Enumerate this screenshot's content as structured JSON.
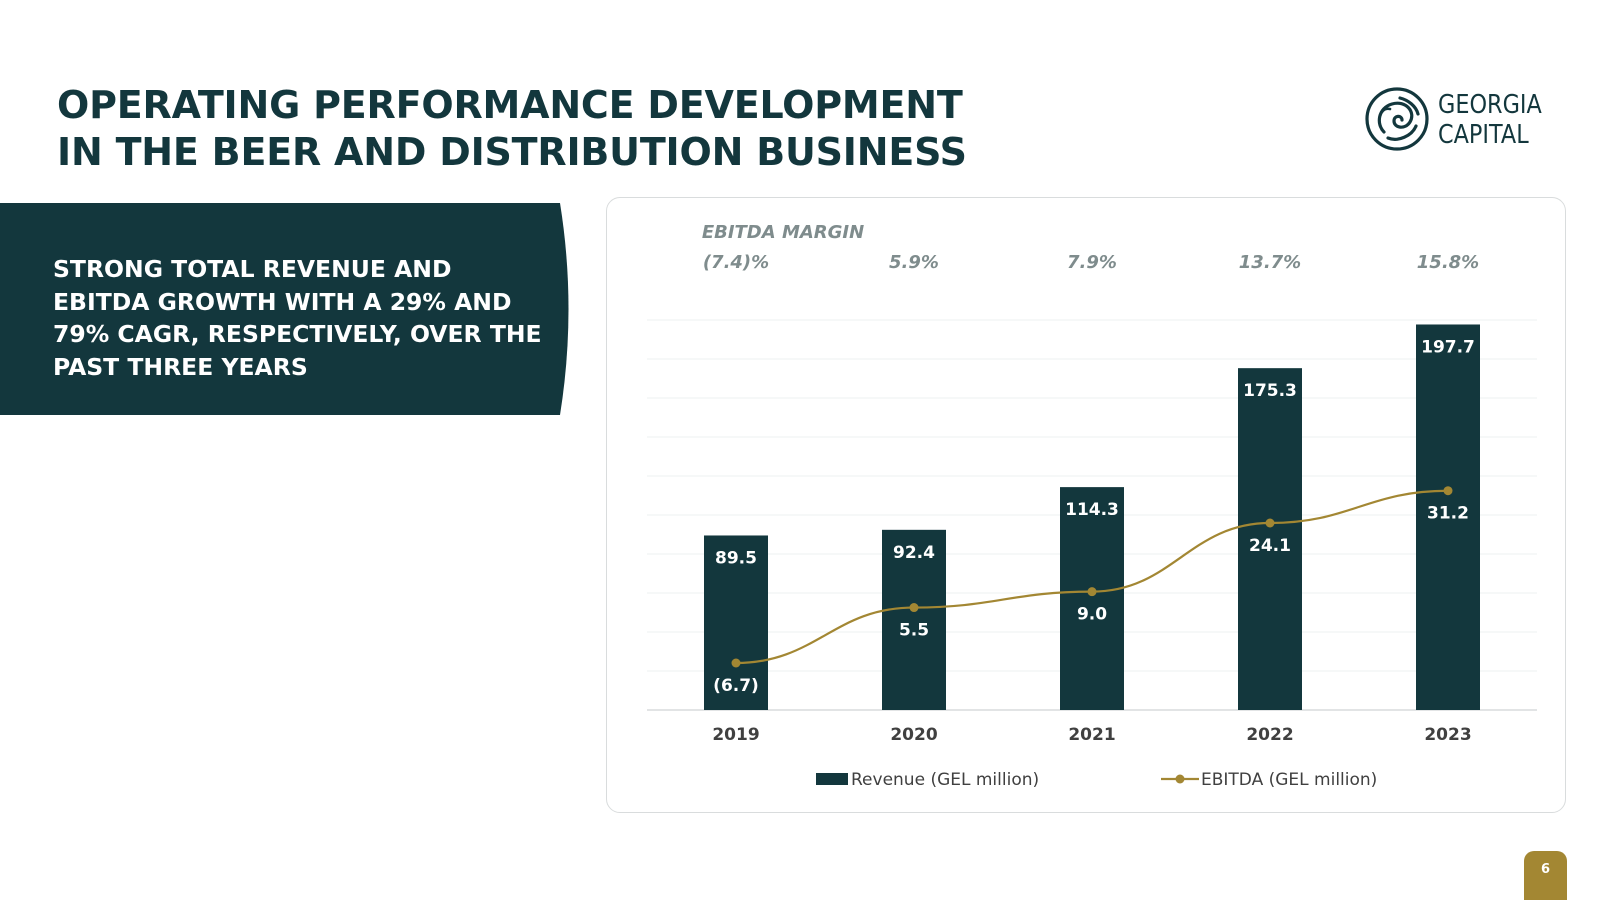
{
  "slide": {
    "title_lines": [
      "OPERATING PERFORMANCE DEVELOPMENT",
      "IN THE BEER AND DISTRIBUTION BUSINESS"
    ],
    "logo": {
      "lines": [
        "GEORGIA",
        "CAPITAL"
      ]
    },
    "banner_lines": [
      "STRONG TOTAL REVENUE AND",
      "EBITDA GROWTH WITH A 29% AND",
      "79% CAGR, RESPECTIVELY, OVER THE",
      "PAST THREE YEARS"
    ],
    "page_number": "6"
  },
  "colors": {
    "dark_teal": "#13373d",
    "gold": "#a38733",
    "grey_text": "#7f8c8d",
    "axis_text": "#404040"
  },
  "chart_data": {
    "type": "bar",
    "categories": [
      "2019",
      "2020",
      "2021",
      "2022",
      "2023"
    ],
    "ylim": [
      -10,
      200
    ],
    "grid": true,
    "legend_position": "bottom",
    "margin_header": "EBITDA MARGIN",
    "margins": [
      "(7.4)%",
      "5.9%",
      "7.9%",
      "13.7%",
      "15.8%"
    ],
    "series": [
      {
        "name": "Revenue (GEL million)",
        "type": "bar",
        "color": "#13373d",
        "values": [
          89.5,
          92.4,
          114.3,
          175.3,
          197.7
        ],
        "labels": [
          "89.5",
          "92.4",
          "114.3",
          "175.3",
          "197.7"
        ]
      },
      {
        "name": "EBITDA (GEL million)",
        "type": "line",
        "color": "#a38733",
        "values": [
          -6.7,
          5.5,
          9.0,
          24.1,
          31.2
        ],
        "labels": [
          "(6.7)",
          "5.5",
          "9.0",
          "24.1",
          "31.2"
        ]
      }
    ]
  }
}
